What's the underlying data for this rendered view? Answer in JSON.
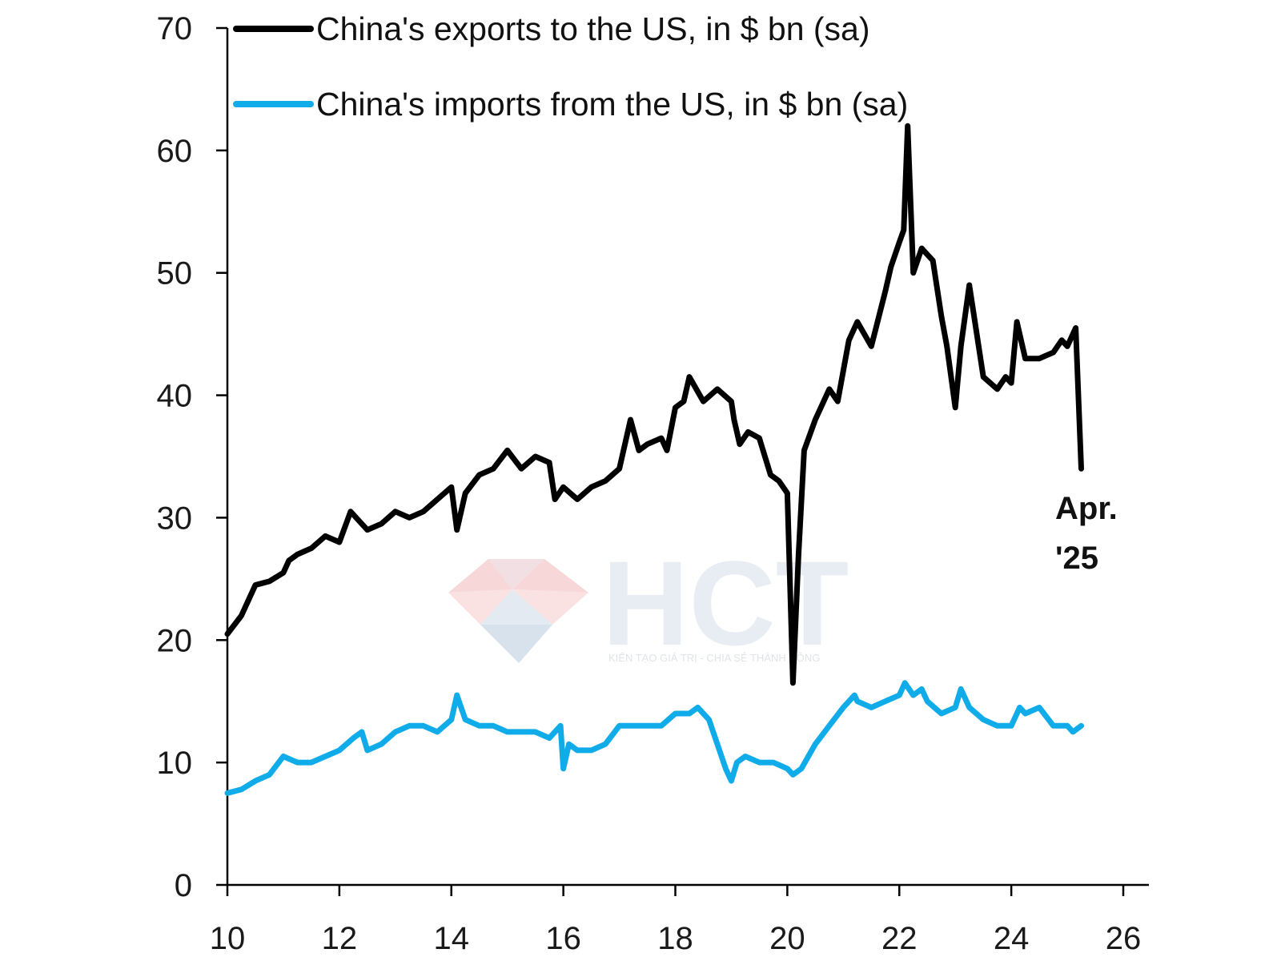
{
  "chart_data": {
    "type": "line",
    "title": "",
    "xlabel": "",
    "ylabel": "",
    "ylim": [
      0,
      70
    ],
    "xlim": [
      10,
      26
    ],
    "y_ticks": [
      "0",
      "10",
      "20",
      "30",
      "40",
      "50",
      "60",
      "70"
    ],
    "x_ticks": [
      "10",
      "12",
      "14",
      "16",
      "18",
      "20",
      "22",
      "24",
      "26"
    ],
    "legend_position": "top-left",
    "grid": false,
    "annotation": {
      "line1": "Apr.",
      "line2": "'25"
    },
    "series": [
      {
        "name": "China's exports to the US, in $ bn (sa)",
        "color": "#000000",
        "x": [
          10.0,
          10.25,
          10.5,
          10.75,
          11.0,
          11.1,
          11.25,
          11.5,
          11.75,
          12.0,
          12.2,
          12.5,
          12.75,
          13.0,
          13.25,
          13.5,
          13.75,
          14.0,
          14.1,
          14.25,
          14.5,
          14.75,
          15.0,
          15.25,
          15.5,
          15.75,
          15.85,
          16.0,
          16.25,
          16.5,
          16.75,
          17.0,
          17.2,
          17.35,
          17.5,
          17.75,
          17.85,
          18.0,
          18.15,
          18.25,
          18.5,
          18.75,
          19.0,
          19.05,
          19.15,
          19.3,
          19.5,
          19.7,
          19.85,
          20.0,
          20.1,
          20.2,
          20.3,
          20.5,
          20.75,
          20.9,
          21.0,
          21.1,
          21.25,
          21.5,
          21.75,
          21.85,
          22.0,
          22.08,
          22.15,
          22.25,
          22.4,
          22.5,
          22.6,
          22.75,
          22.85,
          23.0,
          23.1,
          23.25,
          23.5,
          23.75,
          23.9,
          24.0,
          24.1,
          24.25,
          24.5,
          24.75,
          24.9,
          25.0,
          25.15,
          25.25
        ],
        "values": [
          20.5,
          22.0,
          24.5,
          24.8,
          25.5,
          26.5,
          27.0,
          27.5,
          28.5,
          28.0,
          30.5,
          29.0,
          29.5,
          30.5,
          30.0,
          30.5,
          31.5,
          32.5,
          29.0,
          32.0,
          33.5,
          34.0,
          35.5,
          34.0,
          35.0,
          34.5,
          31.5,
          32.5,
          31.5,
          32.5,
          33.0,
          34.0,
          38.0,
          35.5,
          36.0,
          36.5,
          35.5,
          39.0,
          39.5,
          41.5,
          39.5,
          40.5,
          39.5,
          38.0,
          36.0,
          37.0,
          36.5,
          33.5,
          33.0,
          32.0,
          16.5,
          27.0,
          35.5,
          38.0,
          40.5,
          39.5,
          42.0,
          44.5,
          46.0,
          44.0,
          48.5,
          50.5,
          52.5,
          53.5,
          62.0,
          50.0,
          52.0,
          51.5,
          51.0,
          46.5,
          44.0,
          39.0,
          44.0,
          49.0,
          41.5,
          40.5,
          41.5,
          41.0,
          46.0,
          43.0,
          43.0,
          43.5,
          44.5,
          44.0,
          45.5,
          34.0
        ]
      },
      {
        "name": "China's imports from the US, in $ bn (sa)",
        "color": "#10acea",
        "x": [
          10.0,
          10.25,
          10.5,
          10.75,
          11.0,
          11.25,
          11.5,
          11.75,
          12.0,
          12.25,
          12.4,
          12.5,
          12.75,
          13.0,
          13.25,
          13.5,
          13.75,
          14.0,
          14.1,
          14.25,
          14.5,
          14.75,
          15.0,
          15.25,
          15.5,
          15.75,
          15.95,
          16.0,
          16.1,
          16.25,
          16.5,
          16.75,
          17.0,
          17.25,
          17.5,
          17.75,
          18.0,
          18.25,
          18.4,
          18.6,
          18.75,
          18.9,
          19.0,
          19.1,
          19.25,
          19.5,
          19.75,
          20.0,
          20.1,
          20.25,
          20.5,
          20.75,
          21.0,
          21.2,
          21.25,
          21.5,
          21.75,
          22.0,
          22.1,
          22.25,
          22.4,
          22.5,
          22.75,
          23.0,
          23.1,
          23.25,
          23.5,
          23.75,
          24.0,
          24.15,
          24.25,
          24.5,
          24.75,
          25.0,
          25.1,
          25.25
        ],
        "values": [
          7.5,
          7.8,
          8.5,
          9.0,
          10.5,
          10.0,
          10.0,
          10.5,
          11.0,
          12.0,
          12.5,
          11.0,
          11.5,
          12.5,
          13.0,
          13.0,
          12.5,
          13.5,
          15.5,
          13.5,
          13.0,
          13.0,
          12.5,
          12.5,
          12.5,
          12.0,
          13.0,
          9.5,
          11.5,
          11.0,
          11.0,
          11.5,
          13.0,
          13.0,
          13.0,
          13.0,
          14.0,
          14.0,
          14.5,
          13.5,
          11.5,
          9.5,
          8.5,
          10.0,
          10.5,
          10.0,
          10.0,
          9.5,
          9.0,
          9.5,
          11.5,
          13.0,
          14.5,
          15.5,
          15.0,
          14.5,
          15.0,
          15.5,
          16.5,
          15.5,
          16.0,
          15.0,
          14.0,
          14.5,
          16.0,
          14.5,
          13.5,
          13.0,
          13.0,
          14.5,
          14.0,
          14.5,
          13.0,
          13.0,
          12.5,
          13.0
        ]
      }
    ]
  },
  "watermark": {
    "brand": "HCT",
    "tagline": "KIẾN TẠO GIÁ TRỊ - CHIA SẺ THÀNH CÔNG"
  }
}
